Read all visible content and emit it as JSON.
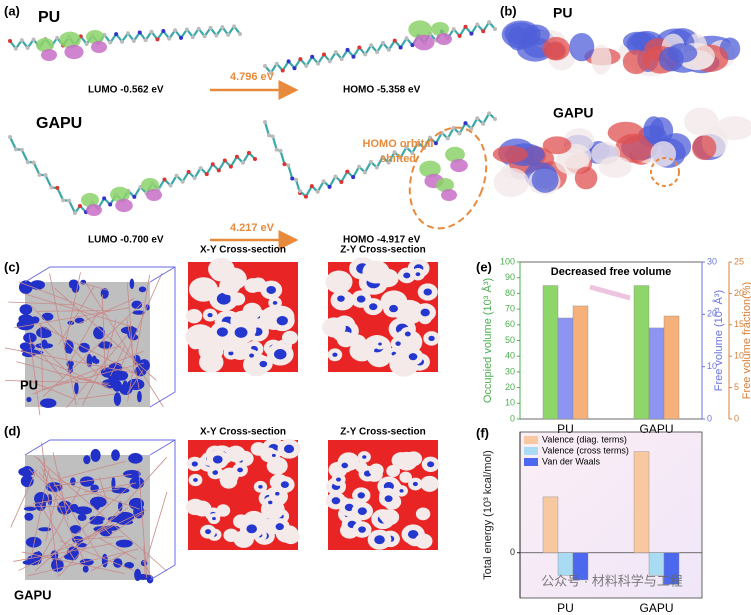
{
  "panels": {
    "a": {
      "label": "(a)",
      "pu": "PU",
      "pu_lumo": "LUMO  -0.562 eV",
      "pu_gap": "4.796 eV",
      "pu_homo": "HOMO  -5.358  eV",
      "gapu": "GAPU",
      "gapu_lumo": "LUMO  -0.700 eV",
      "gapu_gap": "4.217 eV",
      "gapu_homo": "HOMO  -4.917 eV",
      "note": [
        "HOMO orbital",
        "shifted"
      ]
    },
    "b": {
      "label": "(b)",
      "pu": "PU",
      "gapu": "GAPU"
    },
    "c": {
      "label": "(c)",
      "material": "PU",
      "xy": "X-Y Cross-section",
      "zy": "Z-Y Cross-section"
    },
    "d": {
      "label": "(d)",
      "material": "GAPU",
      "xy": "X-Y Cross-section",
      "zy": "Z-Y Cross-section"
    },
    "e": {
      "label": "(e)"
    },
    "f": {
      "label": "(f)"
    },
    "watermark": "公众号 · 材料科学与工程"
  },
  "chart_data": [
    {
      "type": "bar",
      "annotation": "Decreased free volume",
      "categories": [
        "PU",
        "GAPU"
      ],
      "ylabel": "Occupied volume (10³ Å³)",
      "y2label": "Free volume (10³ Å³)",
      "y3label": "Free volume fraction(%)",
      "ylim": [
        0,
        100
      ],
      "yticks": [
        0,
        10,
        20,
        30,
        40,
        50,
        60,
        70,
        80,
        90,
        100
      ],
      "y2lim": [
        0,
        30
      ],
      "y2ticks": [
        0,
        10,
        20,
        30
      ],
      "y3lim": [
        0,
        25
      ],
      "y3ticks": [
        0,
        5,
        10,
        15,
        20,
        25
      ],
      "axis_colors": {
        "y": "#4caf50",
        "y2": "#6a75e0",
        "y3": "#d9803a"
      },
      "series": [
        {
          "color": "#8fd66a",
          "axis": "y",
          "values": [
            85,
            85
          ]
        },
        {
          "color": "#8c96f2",
          "axis": "y2",
          "values": [
            19.3,
            17.4
          ]
        },
        {
          "color": "#f6b07a",
          "axis": "y3",
          "values": [
            18,
            16.4
          ]
        }
      ]
    },
    {
      "type": "bar",
      "categories": [
        "PU",
        "GAPU"
      ],
      "ylabel": "Total energy (10³ kcal/mol)",
      "ylim": [
        -3,
        8
      ],
      "yticks": [
        0
      ],
      "series": [
        {
          "name": "Valence (diag. terms)",
          "color": "#f8c9a0",
          "values": [
            3.7,
            6.7
          ]
        },
        {
          "name": "Valence (cross terms)",
          "color": "#a9dbf3",
          "values": [
            -1.5,
            -1.5
          ]
        },
        {
          "name": "Van der Waals",
          "color": "#4b68ee",
          "values": [
            -1.8,
            -2.1
          ]
        }
      ]
    }
  ]
}
